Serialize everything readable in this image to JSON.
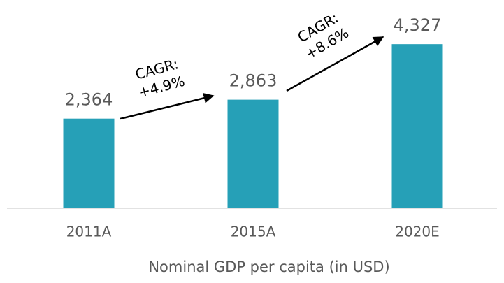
{
  "chart_data": {
    "type": "bar",
    "x_label": "Nominal GDP per capita (in USD)",
    "categories": [
      "2011A",
      "2015A",
      "2020E"
    ],
    "values": [
      2364,
      2863,
      4327
    ],
    "value_labels": [
      "2,364",
      "2,863",
      "4,327"
    ],
    "color": "#26a0b7",
    "ylim": [
      0,
      4330
    ],
    "annotations": [
      [
        "CAGR:",
        "+4.9%"
      ],
      [
        "CAGR:",
        "+8.6%"
      ]
    ]
  }
}
